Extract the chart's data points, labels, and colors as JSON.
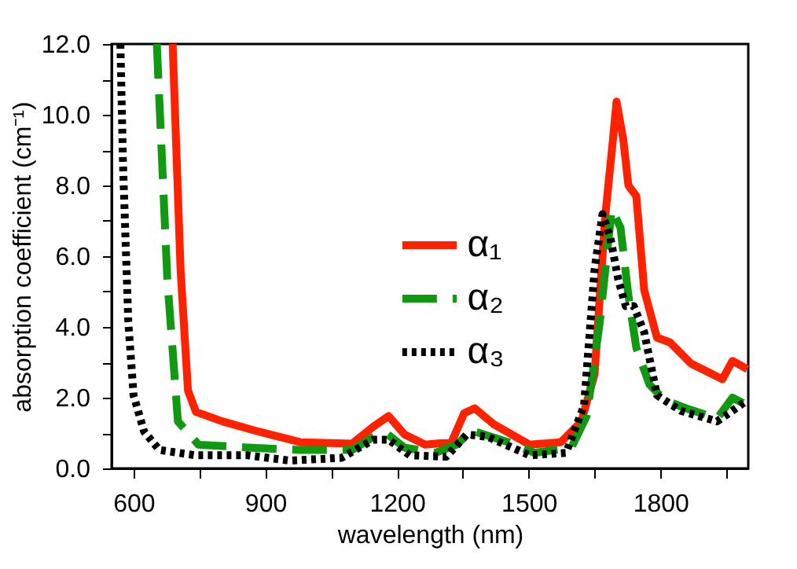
{
  "chart_data": {
    "type": "line",
    "xlabel": "wavelength (nm)",
    "ylabel": "absorption coefficient (cm⁻¹)",
    "xlim": [
      550,
      2000
    ],
    "ylim": [
      0,
      12
    ],
    "xticks": [
      600,
      {
        "value": 750,
        "label": null
      },
      900,
      {
        "value": 1050,
        "label": null
      },
      1200,
      {
        "value": 1350,
        "label": null
      },
      1500,
      {
        "value": 1650,
        "label": null
      },
      1800,
      {
        "value": 1950,
        "label": null
      }
    ],
    "yticks": [
      {
        "value": 0,
        "label": "0.0"
      },
      {
        "value": 1,
        "label": null
      },
      {
        "value": 2,
        "label": "2.0"
      },
      {
        "value": 3,
        "label": null
      },
      {
        "value": 4,
        "label": "4.0"
      },
      {
        "value": 5,
        "label": null
      },
      {
        "value": 6,
        "label": "6.0"
      },
      {
        "value": 7,
        "label": null
      },
      {
        "value": 8,
        "label": "8.0"
      },
      {
        "value": 9,
        "label": null
      },
      {
        "value": 10,
        "label": "10.0"
      },
      {
        "value": 11,
        "label": null
      },
      {
        "value": 12,
        "label": "12.0"
      }
    ],
    "grid": false,
    "legend": "center",
    "marker": "none",
    "series": [
      {
        "name": "α₁",
        "color": "#ff2200",
        "line_style": "solid",
        "x": [
          689,
          707,
          724,
          742,
          802,
          885,
          980,
          1098,
          1146,
          1181,
          1217,
          1264,
          1324,
          1353,
          1377,
          1419,
          1502,
          1573,
          1620,
          1650,
          1674,
          1692,
          1700,
          1715,
          1727,
          1745,
          1763,
          1792,
          1822,
          1870,
          1917,
          1941,
          1964,
          1998
        ],
        "values": [
          12,
          5.63,
          2.2,
          1.6,
          1.33,
          1.04,
          0.74,
          0.7,
          1.18,
          1.48,
          0.96,
          0.67,
          0.74,
          1.56,
          1.7,
          1.26,
          0.67,
          0.74,
          1.33,
          2.67,
          7.1,
          9.33,
          10.37,
          9.33,
          8.0,
          7.7,
          5.04,
          3.7,
          3.56,
          2.96,
          2.67,
          2.52,
          3.04,
          2.81
        ]
      },
      {
        "name": "α₂",
        "color": "#119911",
        "line_style": "dashed",
        "x": [
          653,
          677,
          701,
          748,
          861,
          980,
          1098,
          1146,
          1175,
          1217,
          1288,
          1335,
          1371,
          1454,
          1513,
          1597,
          1632,
          1662,
          1689,
          1709,
          1727,
          1745,
          1775,
          1810,
          1858,
          1929,
          1964,
          1998
        ],
        "values": [
          12,
          5.33,
          1.33,
          0.67,
          0.59,
          0.52,
          0.52,
          0.89,
          1.0,
          0.59,
          0.44,
          0.67,
          1.07,
          0.74,
          0.44,
          0.59,
          1.48,
          4.15,
          7.33,
          6.81,
          4.89,
          3.41,
          2.37,
          1.93,
          1.7,
          1.41,
          2.0,
          1.78
        ]
      },
      {
        "name": "α₃",
        "color": "#000000",
        "line_style": "dotted",
        "x": [
          570,
          576,
          588,
          600,
          624,
          659,
          742,
          861,
          956,
          1074,
          1146,
          1181,
          1229,
          1312,
          1359,
          1407,
          1502,
          1585,
          1626,
          1650,
          1668,
          1686,
          1704,
          1721,
          1739,
          1763,
          1792,
          1846,
          1929,
          1964,
          1998
        ],
        "values": [
          12,
          8.6,
          4.15,
          2.07,
          1.04,
          0.52,
          0.37,
          0.37,
          0.22,
          0.3,
          0.81,
          0.81,
          0.37,
          0.33,
          0.96,
          0.89,
          0.37,
          0.44,
          1.78,
          5.63,
          7.19,
          6.52,
          5.33,
          4.59,
          4.59,
          3.85,
          2.07,
          1.63,
          1.33,
          1.63,
          1.93
        ]
      }
    ]
  }
}
